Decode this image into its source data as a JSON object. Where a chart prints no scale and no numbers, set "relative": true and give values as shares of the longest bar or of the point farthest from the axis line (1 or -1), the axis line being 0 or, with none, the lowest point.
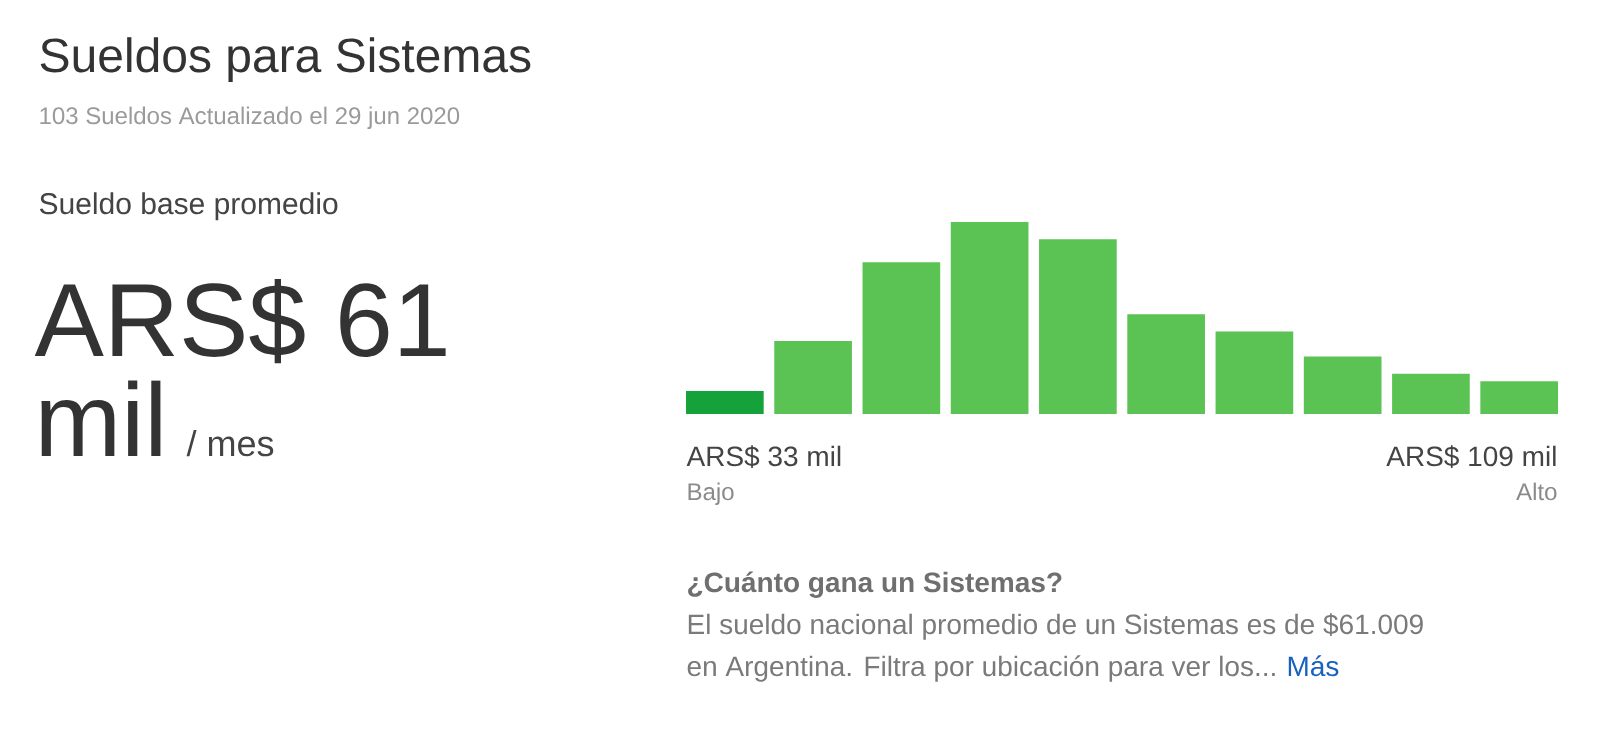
{
  "chart_data": {
    "type": "bar",
    "title": "Sueldos para Sistemas",
    "subtitle": "103 Sueldos    Actualizado el 29 jun 2020",
    "relative": true,
    "categories": [
      null,
      null,
      null,
      null,
      null,
      null,
      null,
      null,
      null,
      null
    ],
    "values": [
      0.12,
      0.38,
      0.79,
      1,
      0.91,
      0.52,
      0.43,
      0.3,
      0.21,
      0.17
    ],
    "colors": [
      "#16a23a",
      "#5bc254",
      "#5bc254",
      "#5bc254",
      "#5bc254",
      "#5bc254",
      "#5bc254",
      "#5bc254",
      "#5bc254",
      "#5bc254"
    ],
    "annotations": [
      "Sueldo base promedio",
      "ARS$ 61",
      "mil",
      "/ mes",
      "ARS$ 33 mil",
      "Bajo",
      "ARS$ 109 mil",
      "Alto",
      "¿Cuánto gana un Sistemas?",
      "El sueldo nacional promedio de un Sistemas es de $61.009",
      "en Argentina. Filtra por ubicación para ver los...",
      "Más"
    ]
  }
}
